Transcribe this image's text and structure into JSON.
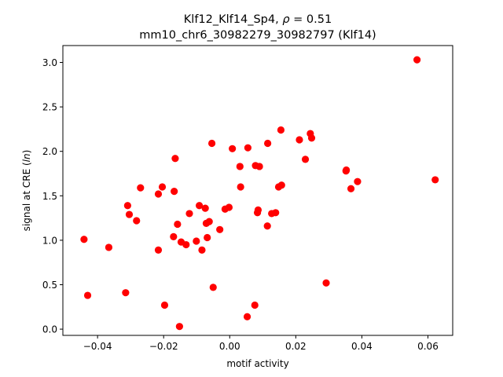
{
  "chart_data": {
    "type": "scatter",
    "title_line1": "Klf12_Klf14_Sp4, ",
    "title_rho_symbol": "ρ",
    "title_rho_value": " = 0.51",
    "title_line2": "mm10_chr6_30982279_30982797 (Klf14)",
    "xlabel": "motif activity",
    "ylabel_prefix": "signal at CRE (",
    "ylabel_italic": "ln",
    "ylabel_suffix": ")",
    "xlim": [
      -0.0505,
      0.0675
    ],
    "ylim": [
      -0.07,
      3.19
    ],
    "xticks": [
      -0.04,
      -0.02,
      0.0,
      0.02,
      0.04,
      0.06
    ],
    "xtick_labels": [
      "−0.04",
      "−0.02",
      "0.00",
      "0.02",
      "0.04",
      "0.06"
    ],
    "yticks": [
      0.0,
      0.5,
      1.0,
      1.5,
      2.0,
      2.5,
      3.0
    ],
    "ytick_labels": [
      "0.0",
      "0.5",
      "1.0",
      "1.5",
      "2.0",
      "2.5",
      "3.0"
    ],
    "grid": false,
    "legend": "none",
    "marker_color": "#ff0000",
    "points": [
      {
        "x": -0.0441,
        "y": 1.01
      },
      {
        "x": -0.043,
        "y": 0.38
      },
      {
        "x": -0.0366,
        "y": 0.92
      },
      {
        "x": -0.0315,
        "y": 0.41
      },
      {
        "x": -0.0309,
        "y": 1.39
      },
      {
        "x": -0.0304,
        "y": 1.29
      },
      {
        "x": -0.0282,
        "y": 1.22
      },
      {
        "x": -0.027,
        "y": 1.59
      },
      {
        "x": -0.0216,
        "y": 1.52
      },
      {
        "x": -0.0216,
        "y": 0.89
      },
      {
        "x": -0.0204,
        "y": 1.6
      },
      {
        "x": -0.0197,
        "y": 0.27
      },
      {
        "x": -0.017,
        "y": 1.04
      },
      {
        "x": -0.0168,
        "y": 1.55
      },
      {
        "x": -0.0165,
        "y": 1.92
      },
      {
        "x": -0.0158,
        "y": 1.18
      },
      {
        "x": -0.0152,
        "y": 0.03
      },
      {
        "x": -0.0147,
        "y": 0.98
      },
      {
        "x": -0.0132,
        "y": 0.95
      },
      {
        "x": -0.0122,
        "y": 1.3
      },
      {
        "x": -0.0101,
        "y": 0.99
      },
      {
        "x": -0.0092,
        "y": 1.39
      },
      {
        "x": -0.0084,
        "y": 0.89
      },
      {
        "x": -0.0074,
        "y": 1.36
      },
      {
        "x": -0.0071,
        "y": 1.19
      },
      {
        "x": -0.0068,
        "y": 1.03
      },
      {
        "x": -0.0062,
        "y": 1.21
      },
      {
        "x": -0.0054,
        "y": 2.09
      },
      {
        "x": -0.005,
        "y": 0.47
      },
      {
        "x": -0.003,
        "y": 1.12
      },
      {
        "x": -0.0014,
        "y": 1.35
      },
      {
        "x": -0.0002,
        "y": 1.37
      },
      {
        "x": 0.0008,
        "y": 2.03
      },
      {
        "x": 0.0031,
        "y": 1.83
      },
      {
        "x": 0.0033,
        "y": 1.6
      },
      {
        "x": 0.0053,
        "y": 0.14
      },
      {
        "x": 0.0055,
        "y": 2.04
      },
      {
        "x": 0.0076,
        "y": 0.27
      },
      {
        "x": 0.0078,
        "y": 1.84
      },
      {
        "x": 0.0084,
        "y": 1.31
      },
      {
        "x": 0.0086,
        "y": 1.34
      },
      {
        "x": 0.009,
        "y": 1.83
      },
      {
        "x": 0.0114,
        "y": 1.16
      },
      {
        "x": 0.0115,
        "y": 2.09
      },
      {
        "x": 0.0127,
        "y": 1.3
      },
      {
        "x": 0.0139,
        "y": 1.31
      },
      {
        "x": 0.0148,
        "y": 1.6
      },
      {
        "x": 0.0155,
        "y": 2.24
      },
      {
        "x": 0.0157,
        "y": 1.62
      },
      {
        "x": 0.0211,
        "y": 2.13
      },
      {
        "x": 0.0229,
        "y": 1.91
      },
      {
        "x": 0.0244,
        "y": 2.2
      },
      {
        "x": 0.0248,
        "y": 2.15
      },
      {
        "x": 0.0292,
        "y": 0.52
      },
      {
        "x": 0.0352,
        "y": 1.78
      },
      {
        "x": 0.0353,
        "y": 1.79
      },
      {
        "x": 0.0367,
        "y": 1.58
      },
      {
        "x": 0.0387,
        "y": 1.66
      },
      {
        "x": 0.0567,
        "y": 3.03
      },
      {
        "x": 0.0622,
        "y": 1.68
      }
    ]
  }
}
